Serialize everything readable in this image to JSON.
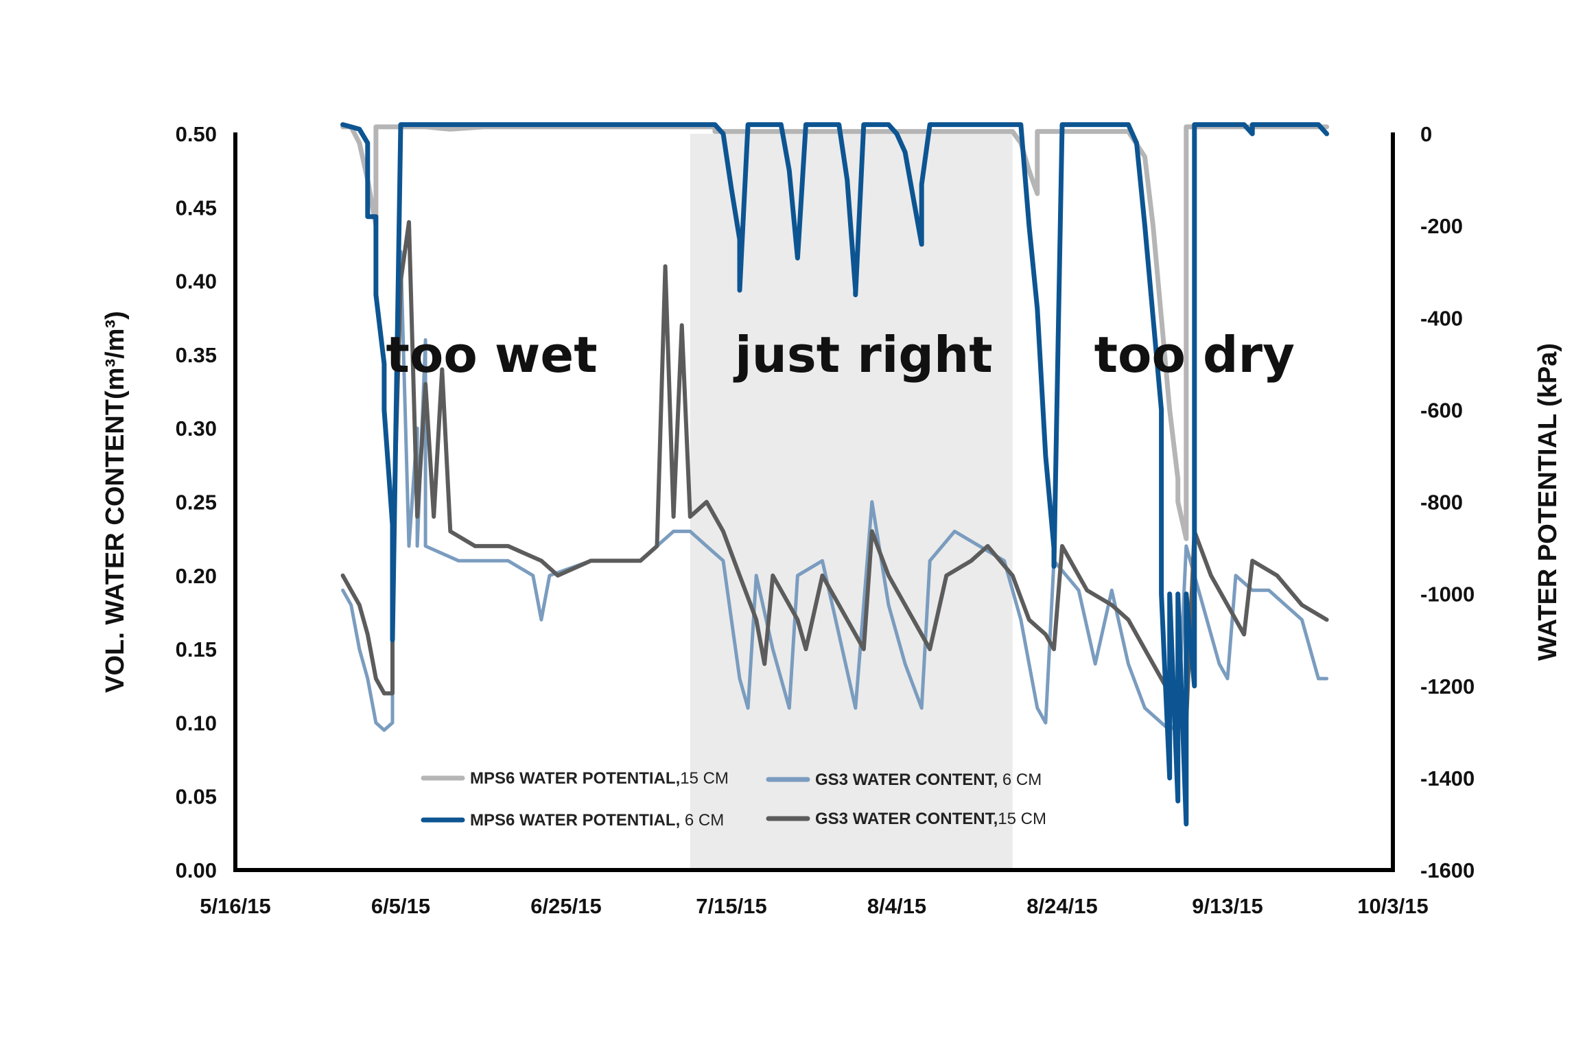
{
  "chart_data": {
    "type": "line",
    "x_ticks": [
      "5/16/15",
      "6/5/15",
      "6/25/15",
      "7/15/15",
      "8/4/15",
      "8/24/15",
      "9/13/15",
      "10/3/15"
    ],
    "x_range": [
      "2015-05-16",
      "2015-10-03"
    ],
    "left_axis": {
      "title": "VOL. WATER CONTENT(m³/m³)",
      "range": [
        0,
        0.5
      ],
      "ticks": [
        "0.00",
        "0.05",
        "0.10",
        "0.15",
        "0.20",
        "0.25",
        "0.30",
        "0.35",
        "0.40",
        "0.45",
        "0.50"
      ]
    },
    "right_axis": {
      "title": "WATER POTENTIAL (kPa)",
      "range": [
        -1600,
        0
      ],
      "ticks": [
        "0",
        "-200",
        "-400",
        "-600",
        "-800",
        "-1000",
        "-1200",
        "-1400",
        "-1600"
      ]
    },
    "shaded_region": {
      "start": "2015-07-10",
      "end": "2015-08-18",
      "color": "#ebebeb"
    },
    "region_labels": [
      {
        "text": "too wet",
        "date": "2015-06-16",
        "axis": "left",
        "value": 0.35
      },
      {
        "text": "just right",
        "date": "2015-07-31",
        "axis": "left",
        "value": 0.35
      },
      {
        "text": "too dry",
        "date": "2015-09-09",
        "axis": "left",
        "value": 0.35
      }
    ],
    "legend": [
      {
        "series": 0,
        "name_bold": "MPS6 WATER POTENTIAL,",
        "name_rest": "15 CM"
      },
      {
        "series": 1,
        "name_bold": "MPS6 WATER POTENTIAL,",
        "name_rest": " 6 CM"
      },
      {
        "series": 2,
        "name_bold": "GS3 WATER CONTENT,",
        "name_rest": " 6 CM"
      },
      {
        "series": 3,
        "name_bold": "GS3 WATER CONTENT,",
        "name_rest": "15 CM"
      }
    ],
    "series": [
      {
        "name": "MPS6 WATER POTENTIAL, 15 CM",
        "axis": "right",
        "color": "#b5b5b5",
        "points": [
          [
            "2015-05-29",
            15
          ],
          [
            "2015-05-30",
            15
          ],
          [
            "2015-05-31",
            -20
          ],
          [
            "2015-06-01",
            -100
          ],
          [
            "2015-06-02",
            -200
          ],
          [
            "2015-06-02",
            15
          ],
          [
            "2015-06-08",
            15
          ],
          [
            "2015-06-11",
            10
          ],
          [
            "2015-06-15",
            15
          ],
          [
            "2015-07-12",
            15
          ],
          [
            "2015-07-13",
            15
          ],
          [
            "2015-07-13",
            5
          ],
          [
            "2015-07-19",
            5
          ],
          [
            "2015-08-18",
            5
          ],
          [
            "2015-08-19",
            -20
          ],
          [
            "2015-08-20",
            -80
          ],
          [
            "2015-08-21",
            -130
          ],
          [
            "2015-08-21",
            5
          ],
          [
            "2015-09-01",
            5
          ],
          [
            "2015-09-03",
            -50
          ],
          [
            "2015-09-04",
            -200
          ],
          [
            "2015-09-05",
            -400
          ],
          [
            "2015-09-06",
            -600
          ],
          [
            "2015-09-07",
            -750
          ],
          [
            "2015-09-07",
            -800
          ],
          [
            "2015-09-08",
            -880
          ],
          [
            "2015-09-08",
            15
          ],
          [
            "2015-09-25",
            15
          ]
        ]
      },
      {
        "name": "MPS6 WATER POTENTIAL, 6 CM",
        "axis": "right",
        "color": "#0d5592",
        "points": [
          [
            "2015-05-29",
            20
          ],
          [
            "2015-05-30",
            15
          ],
          [
            "2015-05-31",
            10
          ],
          [
            "2015-06-01",
            -20
          ],
          [
            "2015-06-01",
            -180
          ],
          [
            "2015-06-02",
            -180
          ],
          [
            "2015-06-02",
            -350
          ],
          [
            "2015-06-03",
            -500
          ],
          [
            "2015-06-03",
            -600
          ],
          [
            "2015-06-04",
            -850
          ],
          [
            "2015-06-04",
            -1100
          ],
          [
            "2015-06-05",
            20
          ],
          [
            "2015-07-13",
            20
          ],
          [
            "2015-07-14",
            0
          ],
          [
            "2015-07-15",
            -120
          ],
          [
            "2015-07-16",
            -230
          ],
          [
            "2015-07-16",
            -340
          ],
          [
            "2015-07-17",
            20
          ],
          [
            "2015-07-21",
            20
          ],
          [
            "2015-07-22",
            -80
          ],
          [
            "2015-07-23",
            -270
          ],
          [
            "2015-07-24",
            20
          ],
          [
            "2015-07-28",
            20
          ],
          [
            "2015-07-29",
            -100
          ],
          [
            "2015-07-30",
            -340
          ],
          [
            "2015-07-30",
            -350
          ],
          [
            "2015-07-31",
            20
          ],
          [
            "2015-08-03",
            20
          ],
          [
            "2015-08-04",
            0
          ],
          [
            "2015-08-05",
            -40
          ],
          [
            "2015-08-06",
            -140
          ],
          [
            "2015-08-07",
            -240
          ],
          [
            "2015-08-07",
            -110
          ],
          [
            "2015-08-08",
            20
          ],
          [
            "2015-08-19",
            20
          ],
          [
            "2015-08-20",
            -200
          ],
          [
            "2015-08-21",
            -380
          ],
          [
            "2015-08-22",
            -700
          ],
          [
            "2015-08-23",
            -900
          ],
          [
            "2015-08-23",
            -940
          ],
          [
            "2015-08-24",
            20
          ],
          [
            "2015-09-01",
            20
          ],
          [
            "2015-09-02",
            -20
          ],
          [
            "2015-09-03",
            -200
          ],
          [
            "2015-09-05",
            -600
          ],
          [
            "2015-09-05",
            -1000
          ],
          [
            "2015-09-06",
            -1400
          ],
          [
            "2015-09-06",
            -1000
          ],
          [
            "2015-09-07",
            -1450
          ],
          [
            "2015-09-07",
            -1000
          ],
          [
            "2015-09-08",
            -1500
          ],
          [
            "2015-09-08",
            -1000
          ],
          [
            "2015-09-09",
            -1200
          ],
          [
            "2015-09-09",
            20
          ],
          [
            "2015-09-15",
            20
          ],
          [
            "2015-09-16",
            0
          ],
          [
            "2015-09-16",
            20
          ],
          [
            "2015-09-24",
            20
          ],
          [
            "2015-09-25",
            0
          ]
        ]
      },
      {
        "name": "GS3 WATER CONTENT, 6 CM",
        "axis": "left",
        "color": "#7a9cbf",
        "points": [
          [
            "2015-05-29",
            0.19
          ],
          [
            "2015-05-30",
            0.18
          ],
          [
            "2015-05-31",
            0.15
          ],
          [
            "2015-06-01",
            0.13
          ],
          [
            "2015-06-02",
            0.1
          ],
          [
            "2015-06-03",
            0.095
          ],
          [
            "2015-06-04",
            0.1
          ],
          [
            "2015-06-04",
            0.22
          ],
          [
            "2015-06-05",
            0.42
          ],
          [
            "2015-06-06",
            0.22
          ],
          [
            "2015-06-07",
            0.3
          ],
          [
            "2015-06-07",
            0.22
          ],
          [
            "2015-06-08",
            0.36
          ],
          [
            "2015-06-08",
            0.22
          ],
          [
            "2015-06-12",
            0.21
          ],
          [
            "2015-06-18",
            0.21
          ],
          [
            "2015-06-21",
            0.2
          ],
          [
            "2015-06-22",
            0.17
          ],
          [
            "2015-06-23",
            0.2
          ],
          [
            "2015-06-28",
            0.21
          ],
          [
            "2015-07-04",
            0.21
          ],
          [
            "2015-07-08",
            0.23
          ],
          [
            "2015-07-10",
            0.23
          ],
          [
            "2015-07-12",
            0.22
          ],
          [
            "2015-07-14",
            0.21
          ],
          [
            "2015-07-15",
            0.17
          ],
          [
            "2015-07-16",
            0.13
          ],
          [
            "2015-07-17",
            0.11
          ],
          [
            "2015-07-18",
            0.2
          ],
          [
            "2015-07-20",
            0.15
          ],
          [
            "2015-07-22",
            0.11
          ],
          [
            "2015-07-23",
            0.2
          ],
          [
            "2015-07-26",
            0.21
          ],
          [
            "2015-07-28",
            0.16
          ],
          [
            "2015-07-30",
            0.11
          ],
          [
            "2015-08-01",
            0.25
          ],
          [
            "2015-08-03",
            0.18
          ],
          [
            "2015-08-05",
            0.14
          ],
          [
            "2015-08-07",
            0.11
          ],
          [
            "2015-08-08",
            0.21
          ],
          [
            "2015-08-11",
            0.23
          ],
          [
            "2015-08-14",
            0.22
          ],
          [
            "2015-08-17",
            0.21
          ],
          [
            "2015-08-19",
            0.17
          ],
          [
            "2015-08-21",
            0.11
          ],
          [
            "2015-08-22",
            0.1
          ],
          [
            "2015-08-23",
            0.21
          ],
          [
            "2015-08-26",
            0.19
          ],
          [
            "2015-08-28",
            0.14
          ],
          [
            "2015-08-30",
            0.19
          ],
          [
            "2015-09-01",
            0.14
          ],
          [
            "2015-09-03",
            0.11
          ],
          [
            "2015-09-05",
            0.1
          ],
          [
            "2015-09-06",
            0.095
          ],
          [
            "2015-09-07",
            0.1
          ],
          [
            "2015-09-08",
            0.22
          ],
          [
            "2015-09-10",
            0.18
          ],
          [
            "2015-09-12",
            0.14
          ],
          [
            "2015-09-13",
            0.13
          ],
          [
            "2015-09-14",
            0.2
          ],
          [
            "2015-09-16",
            0.19
          ],
          [
            "2015-09-18",
            0.19
          ],
          [
            "2015-09-20",
            0.18
          ],
          [
            "2015-09-22",
            0.17
          ],
          [
            "2015-09-24",
            0.13
          ],
          [
            "2015-09-25",
            0.13
          ]
        ]
      },
      {
        "name": "GS3 WATER CONTENT, 15 CM",
        "axis": "left",
        "color": "#5c5c5c",
        "points": [
          [
            "2015-05-29",
            0.2
          ],
          [
            "2015-05-30",
            0.19
          ],
          [
            "2015-05-31",
            0.18
          ],
          [
            "2015-06-01",
            0.16
          ],
          [
            "2015-06-02",
            0.13
          ],
          [
            "2015-06-03",
            0.12
          ],
          [
            "2015-06-04",
            0.12
          ],
          [
            "2015-06-04",
            0.21
          ],
          [
            "2015-06-05",
            0.4
          ],
          [
            "2015-06-06",
            0.44
          ],
          [
            "2015-06-07",
            0.24
          ],
          [
            "2015-06-08",
            0.33
          ],
          [
            "2015-06-09",
            0.24
          ],
          [
            "2015-06-10",
            0.34
          ],
          [
            "2015-06-11",
            0.23
          ],
          [
            "2015-06-14",
            0.22
          ],
          [
            "2015-06-18",
            0.22
          ],
          [
            "2015-06-22",
            0.21
          ],
          [
            "2015-06-24",
            0.2
          ],
          [
            "2015-06-28",
            0.21
          ],
          [
            "2015-07-04",
            0.21
          ],
          [
            "2015-07-06",
            0.22
          ],
          [
            "2015-07-07",
            0.41
          ],
          [
            "2015-07-08",
            0.24
          ],
          [
            "2015-07-09",
            0.37
          ],
          [
            "2015-07-10",
            0.24
          ],
          [
            "2015-07-12",
            0.25
          ],
          [
            "2015-07-14",
            0.23
          ],
          [
            "2015-07-16",
            0.2
          ],
          [
            "2015-07-18",
            0.17
          ],
          [
            "2015-07-19",
            0.14
          ],
          [
            "2015-07-20",
            0.2
          ],
          [
            "2015-07-23",
            0.17
          ],
          [
            "2015-07-24",
            0.15
          ],
          [
            "2015-07-26",
            0.2
          ],
          [
            "2015-07-28",
            0.18
          ],
          [
            "2015-07-30",
            0.16
          ],
          [
            "2015-07-31",
            0.15
          ],
          [
            "2015-08-01",
            0.23
          ],
          [
            "2015-08-03",
            0.2
          ],
          [
            "2015-08-05",
            0.18
          ],
          [
            "2015-08-07",
            0.16
          ],
          [
            "2015-08-08",
            0.15
          ],
          [
            "2015-08-10",
            0.2
          ],
          [
            "2015-08-13",
            0.21
          ],
          [
            "2015-08-15",
            0.22
          ],
          [
            "2015-08-18",
            0.2
          ],
          [
            "2015-08-20",
            0.17
          ],
          [
            "2015-08-22",
            0.16
          ],
          [
            "2015-08-23",
            0.15
          ],
          [
            "2015-08-24",
            0.22
          ],
          [
            "2015-08-27",
            0.19
          ],
          [
            "2015-08-30",
            0.18
          ],
          [
            "2015-09-01",
            0.17
          ],
          [
            "2015-09-04",
            0.14
          ],
          [
            "2015-09-06",
            0.12
          ],
          [
            "2015-09-07",
            0.11
          ],
          [
            "2015-09-08",
            0.1
          ],
          [
            "2015-09-09",
            0.23
          ],
          [
            "2015-09-11",
            0.2
          ],
          [
            "2015-09-13",
            0.18
          ],
          [
            "2015-09-15",
            0.16
          ],
          [
            "2015-09-16",
            0.21
          ],
          [
            "2015-09-19",
            0.2
          ],
          [
            "2015-09-22",
            0.18
          ],
          [
            "2015-09-25",
            0.17
          ]
        ]
      }
    ]
  }
}
